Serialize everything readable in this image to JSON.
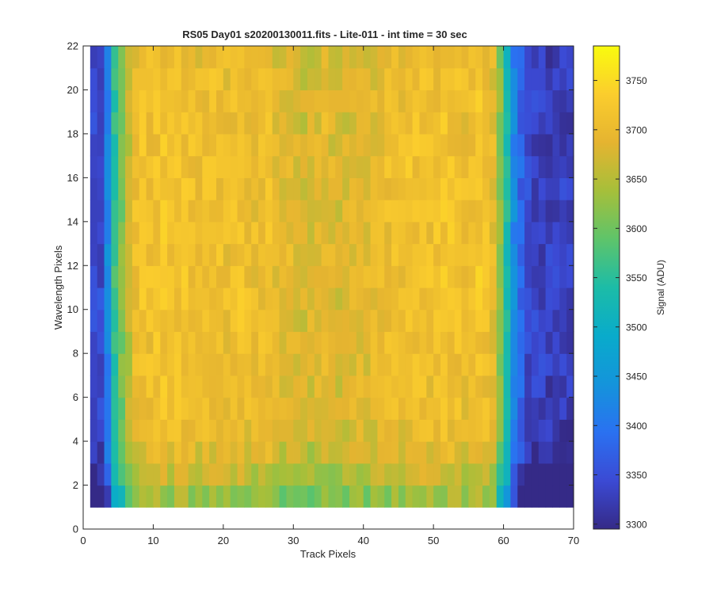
{
  "chart_data": {
    "type": "heatmap",
    "title": "RS05 Day01  s20200130011.fits - Lite-011 - int time = 30 sec",
    "xlabel": "Track Pixels",
    "ylabel": "Wavelength Pixels",
    "colorbar_label": "Signal (ADU)",
    "xlim": [
      0,
      70
    ],
    "ylim": [
      0,
      22
    ],
    "xticks": [
      0,
      10,
      20,
      30,
      40,
      50,
      60,
      70
    ],
    "yticks": [
      0,
      2,
      4,
      6,
      8,
      10,
      12,
      14,
      16,
      18,
      20,
      22
    ],
    "clim": [
      3295,
      3785
    ],
    "colorbar_ticks": [
      3300,
      3350,
      3400,
      3450,
      3500,
      3550,
      3600,
      3650,
      3700,
      3750
    ],
    "colormap": "parula",
    "grid": false,
    "x_range": [
      1,
      69
    ],
    "y_range": [
      1,
      21
    ],
    "column_profile": [
      3340,
      3340,
      3420,
      3555,
      3610,
      3655,
      3700,
      3710,
      3705,
      3710,
      3715,
      3708,
      3710,
      3712,
      3705,
      3700,
      3708,
      3710,
      3703,
      3698,
      3706,
      3710,
      3700,
      3695,
      3700,
      3705,
      3690,
      3685,
      3690,
      3680,
      3670,
      3675,
      3685,
      3690,
      3680,
      3672,
      3678,
      3684,
      3690,
      3685,
      3688,
      3692,
      3700,
      3705,
      3702,
      3710,
      3712,
      3708,
      3704,
      3710,
      3715,
      3712,
      3710,
      3700,
      3710,
      3716,
      3705,
      3690,
      3615,
      3530,
      3420,
      3375,
      3340,
      3332,
      3330,
      3325,
      3330,
      3328,
      3326
    ],
    "row_offsets": [
      -75,
      -42,
      -22,
      -8,
      -3,
      0,
      2,
      3,
      4,
      5,
      5,
      4,
      4,
      4,
      3,
      3,
      2,
      1,
      0,
      -2,
      -5
    ]
  }
}
